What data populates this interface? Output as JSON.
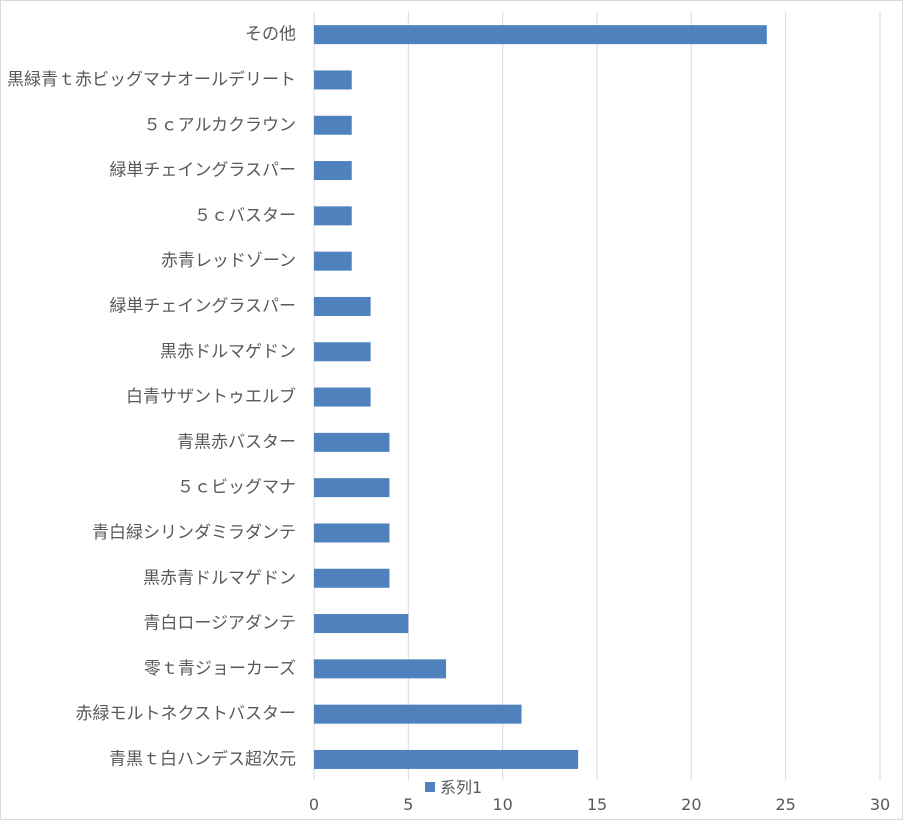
{
  "chart_data": {
    "type": "bar",
    "orientation": "horizontal",
    "categories": [
      "その他",
      "黒緑青ｔ赤ビッグマナオールデリート",
      "５ｃアルカクラウン",
      "緑単チェイングラスパー",
      "５ｃバスター",
      "赤青レッドゾーン",
      "緑単チェイングラスパー",
      "黒赤ドルマゲドン",
      "白青サザントゥエルブ",
      "青黒赤バスター",
      "５ｃビッグマナ",
      "青白緑シリンダミラダンテ",
      "黒赤青ドルマゲドン",
      "青白ロージアダンテ",
      "零ｔ青ジョーカーズ",
      "赤緑モルトネクストバスター",
      "青黒ｔ白ハンデス超次元"
    ],
    "series": [
      {
        "name": "系列1",
        "values": [
          24,
          2,
          2,
          2,
          2,
          2,
          3,
          3,
          3,
          4,
          4,
          4,
          4,
          5,
          7,
          11,
          14
        ],
        "color": "#4f81bd"
      }
    ],
    "xlim": [
      0,
      30
    ],
    "xticks": [
      0,
      5,
      10,
      15,
      20,
      25,
      30
    ],
    "grid": "vertical",
    "legend_position": "bottom",
    "title": "",
    "xlabel": "",
    "ylabel": ""
  }
}
